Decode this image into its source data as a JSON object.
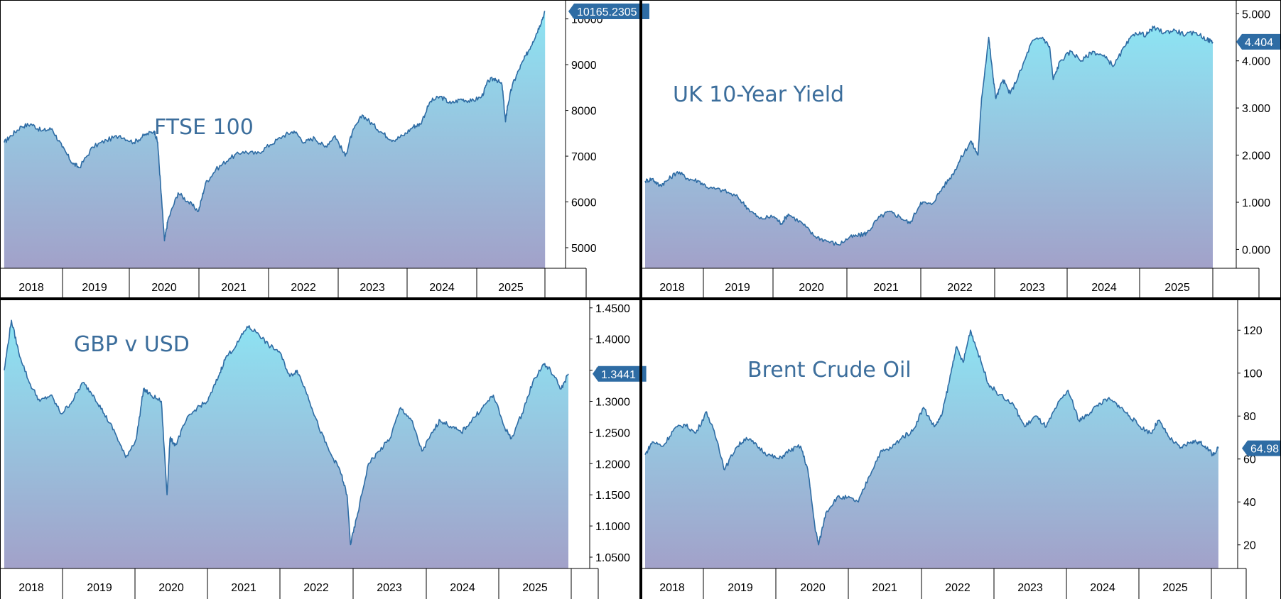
{
  "colors": {
    "line": "#2e6ca4",
    "fill_top": "#8de4f3",
    "fill_bottom": "#a2a1c9",
    "title": "#3c6e9c",
    "badge": "#2e6ca4",
    "axis": "#000000"
  },
  "chart_data": [
    {
      "type": "area",
      "title": "FTSE 100",
      "last_value_label": "10165.2305",
      "ylim": [
        4550,
        10320
      ],
      "yticks": [
        5000,
        6000,
        7000,
        8000,
        9000,
        10000
      ],
      "ytick_labels": [
        "5000",
        "6000",
        "7000",
        "8000",
        "9000",
        "10000"
      ],
      "xlim": [
        2017.88,
        2025.88
      ],
      "xticks": [
        "2018",
        "2019",
        "2020",
        "2021",
        "2022",
        "2023",
        "2024",
        "2025"
      ],
      "x": [
        2017.9,
        2018.0,
        2018.15,
        2018.3,
        2018.45,
        2018.6,
        2018.75,
        2018.9,
        2019.0,
        2019.2,
        2019.4,
        2019.6,
        2019.8,
        2019.95,
        2020.1,
        2020.15,
        2020.2,
        2020.25,
        2020.3,
        2020.45,
        2020.6,
        2020.75,
        2020.85,
        2021.0,
        2021.2,
        2021.4,
        2021.6,
        2021.8,
        2022.0,
        2022.15,
        2022.3,
        2022.45,
        2022.6,
        2022.75,
        2022.9,
        2023.0,
        2023.15,
        2023.3,
        2023.45,
        2023.6,
        2023.75,
        2023.9,
        2024.0,
        2024.15,
        2024.3,
        2024.45,
        2024.6,
        2024.75,
        2024.9,
        2025.0,
        2025.1,
        2025.2,
        2025.25,
        2025.28,
        2025.35,
        2025.45,
        2025.55,
        2025.65,
        2025.75,
        2025.83
      ],
      "y": [
        7300,
        7450,
        7650,
        7700,
        7550,
        7600,
        7200,
        6850,
        6750,
        7200,
        7350,
        7450,
        7300,
        7450,
        7550,
        7300,
        6200,
        5150,
        5600,
        6200,
        6000,
        5800,
        6400,
        6700,
        6950,
        7100,
        7050,
        7250,
        7450,
        7550,
        7300,
        7400,
        7200,
        7450,
        7000,
        7500,
        7900,
        7700,
        7500,
        7350,
        7450,
        7650,
        7700,
        8200,
        8300,
        8150,
        8250,
        8200,
        8300,
        8650,
        8700,
        8550,
        7750,
        8100,
        8550,
        8900,
        9200,
        9500,
        9850,
        10165
      ]
    },
    {
      "type": "area",
      "title": "UK 10-Year Yield",
      "last_value_label": "4.404",
      "ylim": [
        -0.4,
        5.2
      ],
      "yticks": [
        0,
        1,
        2,
        3,
        4,
        5
      ],
      "ytick_labels": [
        "0.000",
        "1.000",
        "2.000",
        "3.000",
        "4.000",
        "5.000"
      ],
      "xlim": [
        2017.88,
        2025.88
      ],
      "xticks": [
        "2018",
        "2019",
        "2020",
        "2021",
        "2022",
        "2023",
        "2024",
        "2025"
      ],
      "x": [
        2017.9,
        2018.0,
        2018.1,
        2018.2,
        2018.35,
        2018.5,
        2018.65,
        2018.8,
        2019.0,
        2019.2,
        2019.35,
        2019.5,
        2019.7,
        2019.8,
        2019.9,
        2020.1,
        2020.25,
        2020.4,
        2020.6,
        2020.75,
        2020.9,
        2021.0,
        2021.15,
        2021.3,
        2021.45,
        2021.6,
        2021.75,
        2021.9,
        2022.05,
        2022.2,
        2022.3,
        2022.45,
        2022.55,
        2022.6,
        2022.7,
        2022.75,
        2022.8,
        2022.9,
        2023.0,
        2023.15,
        2023.3,
        2023.45,
        2023.55,
        2023.6,
        2023.7,
        2023.85,
        2024.0,
        2024.15,
        2024.3,
        2024.45,
        2024.6,
        2024.75,
        2024.9,
        2025.0,
        2025.15,
        2025.3,
        2025.45,
        2025.6,
        2025.75,
        2025.83
      ],
      "y": [
        1.45,
        1.5,
        1.35,
        1.45,
        1.65,
        1.5,
        1.45,
        1.3,
        1.25,
        1.1,
        0.85,
        0.65,
        0.7,
        0.55,
        0.75,
        0.55,
        0.3,
        0.2,
        0.1,
        0.25,
        0.3,
        0.35,
        0.65,
        0.8,
        0.7,
        0.55,
        1.0,
        0.95,
        1.3,
        1.6,
        1.9,
        2.3,
        2.0,
        3.2,
        4.5,
        3.8,
        3.2,
        3.6,
        3.3,
        3.8,
        4.4,
        4.5,
        4.3,
        3.6,
        4.0,
        4.2,
        4.0,
        4.2,
        4.1,
        3.9,
        4.3,
        4.6,
        4.55,
        4.7,
        4.6,
        4.65,
        4.55,
        4.6,
        4.45,
        4.404
      ]
    },
    {
      "type": "area",
      "title": "GBP v USD",
      "last_value_label": "1.3441",
      "ylim": [
        1.0318,
        1.4486
      ],
      "yticks": [
        1.05,
        1.1,
        1.15,
        1.2,
        1.25,
        1.3,
        1.35,
        1.4,
        1.45
      ],
      "ytick_labels": [
        "1.0500",
        "1.1000",
        "1.1500",
        "1.2000",
        "1.2500",
        "1.3000",
        "1.3500",
        "1.4000",
        "1.4500"
      ],
      "xlim": [
        2017.88,
        2025.88
      ],
      "xticks": [
        "2018",
        "2019",
        "2020",
        "2021",
        "2022",
        "2023",
        "2024",
        "2025"
      ],
      "x": [
        2017.9,
        2018.0,
        2018.1,
        2018.25,
        2018.4,
        2018.55,
        2018.7,
        2018.85,
        2019.0,
        2019.15,
        2019.3,
        2019.45,
        2019.6,
        2019.75,
        2019.85,
        2019.95,
        2020.1,
        2020.18,
        2020.22,
        2020.3,
        2020.45,
        2020.6,
        2020.75,
        2020.9,
        2021.0,
        2021.15,
        2021.3,
        2021.45,
        2021.6,
        2021.75,
        2021.9,
        2022.0,
        2022.15,
        2022.3,
        2022.45,
        2022.6,
        2022.7,
        2022.75,
        2022.85,
        2023.0,
        2023.15,
        2023.3,
        2023.45,
        2023.6,
        2023.75,
        2023.9,
        2024.0,
        2024.15,
        2024.3,
        2024.45,
        2024.6,
        2024.75,
        2024.9,
        2025.0,
        2025.15,
        2025.3,
        2025.45,
        2025.55,
        2025.7,
        2025.8
      ],
      "y": [
        1.35,
        1.43,
        1.38,
        1.33,
        1.3,
        1.31,
        1.28,
        1.3,
        1.33,
        1.31,
        1.28,
        1.25,
        1.21,
        1.24,
        1.32,
        1.31,
        1.3,
        1.15,
        1.24,
        1.23,
        1.27,
        1.29,
        1.3,
        1.34,
        1.37,
        1.39,
        1.42,
        1.41,
        1.39,
        1.38,
        1.34,
        1.35,
        1.31,
        1.26,
        1.22,
        1.19,
        1.15,
        1.07,
        1.12,
        1.2,
        1.22,
        1.24,
        1.29,
        1.27,
        1.22,
        1.25,
        1.27,
        1.26,
        1.25,
        1.27,
        1.29,
        1.31,
        1.26,
        1.24,
        1.28,
        1.33,
        1.36,
        1.35,
        1.32,
        1.3441
      ]
    },
    {
      "type": "area",
      "title": "Brent Crude Oil",
      "last_value_label": "64.98",
      "ylim": [
        9,
        130
      ],
      "yticks": [
        20,
        40,
        60,
        80,
        100,
        120
      ],
      "ytick_labels": [
        "20",
        "40",
        "60",
        "80",
        "100",
        "120"
      ],
      "xlim": [
        2017.88,
        2025.88
      ],
      "xticks": [
        "2018",
        "2019",
        "2020",
        "2021",
        "2022",
        "2023",
        "2024",
        "2025"
      ],
      "x": [
        2017.9,
        2018.0,
        2018.15,
        2018.3,
        2018.45,
        2018.6,
        2018.75,
        2018.9,
        2019.0,
        2019.15,
        2019.3,
        2019.45,
        2019.6,
        2019.75,
        2019.9,
        2020.05,
        2020.15,
        2020.25,
        2020.3,
        2020.4,
        2020.55,
        2020.7,
        2020.85,
        2021.0,
        2021.15,
        2021.3,
        2021.45,
        2021.6,
        2021.75,
        2021.9,
        2022.0,
        2022.1,
        2022.2,
        2022.3,
        2022.4,
        2022.5,
        2022.65,
        2022.8,
        2023.0,
        2023.15,
        2023.3,
        2023.45,
        2023.6,
        2023.75,
        2023.9,
        2024.0,
        2024.15,
        2024.3,
        2024.45,
        2024.6,
        2024.75,
        2024.9,
        2025.0,
        2025.15,
        2025.3,
        2025.45,
        2025.55,
        2025.65,
        2025.75,
        2025.83
      ],
      "y": [
        62,
        68,
        66,
        74,
        76,
        72,
        82,
        68,
        55,
        65,
        70,
        66,
        62,
        60,
        64,
        66,
        55,
        28,
        20,
        35,
        42,
        42,
        40,
        52,
        63,
        65,
        70,
        73,
        84,
        75,
        80,
        95,
        112,
        105,
        120,
        110,
        95,
        90,
        85,
        75,
        80,
        75,
        85,
        92,
        78,
        80,
        85,
        88,
        85,
        80,
        75,
        72,
        78,
        70,
        65,
        68,
        68,
        66,
        62,
        64.98
      ]
    }
  ]
}
